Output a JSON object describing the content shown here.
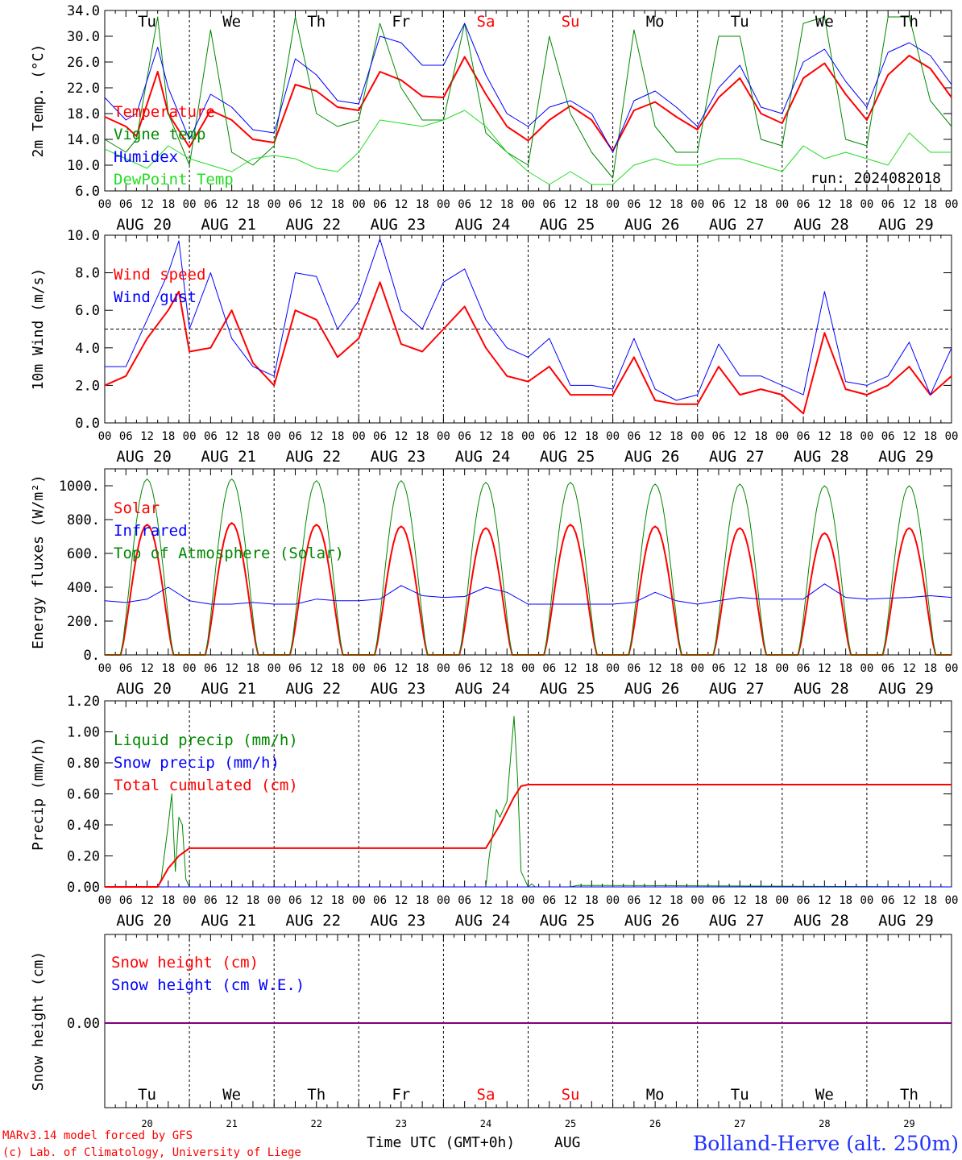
{
  "colors": {
    "red": "#ff0000",
    "green": "#008800",
    "blue": "#0000ff",
    "lightgreen": "#22dd22",
    "purple": "#800080",
    "axis": "#000000",
    "title": "#2233ff"
  },
  "time_axis": {
    "hour_labels": [
      "00",
      "06",
      "12",
      "18"
    ],
    "final_hour_label": "00",
    "date_labels": [
      "AUG 20",
      "AUG 21",
      "AUG 22",
      "AUG 23",
      "AUG 24",
      "AUG 25",
      "AUG 26",
      "AUG 27",
      "AUG 28",
      "AUG 29"
    ],
    "weekday_labels": [
      {
        "text": "Tu",
        "weekend": false
      },
      {
        "text": "We",
        "weekend": false
      },
      {
        "text": "Th",
        "weekend": false
      },
      {
        "text": "Fr",
        "weekend": false
      },
      {
        "text": "Sa",
        "weekend": true
      },
      {
        "text": "Su",
        "weekend": true
      },
      {
        "text": "Mo",
        "weekend": false
      },
      {
        "text": "Tu",
        "weekend": false
      },
      {
        "text": "We",
        "weekend": false
      },
      {
        "text": "Th",
        "weekend": false
      }
    ],
    "day_numbers": [
      "20",
      "21",
      "22",
      "23",
      "24",
      "25",
      "26",
      "27",
      "28",
      "29"
    ],
    "month_label": "AUG",
    "axis_title": "Time UTC (GMT+0h)"
  },
  "footer": {
    "credit_line1": "MARv3.14 model forced by GFS",
    "credit_line2": "(c) Lab. of Climatology, University of Liege",
    "station": "Bolland-Herve (alt. 250m)"
  },
  "chart_data": [
    {
      "type": "line",
      "ylabel": "2m Temp. (°C)",
      "ylim": [
        6,
        34
      ],
      "yticks": [
        6,
        10,
        14,
        18,
        22,
        26,
        30,
        34
      ],
      "ytick_labels": [
        "6.0",
        "10.0",
        "14.0",
        "18.0",
        "22.0",
        "26.0",
        "30.0",
        "34.0"
      ],
      "annotation": "run: 2024082018",
      "x_unit": "hours since 2024-08-20 00 UTC",
      "series": [
        {
          "name": "Temperature",
          "color_key": "red",
          "x": [
            0,
            6,
            9,
            15,
            18,
            24,
            30,
            36,
            42,
            48,
            54,
            60,
            66,
            72,
            78,
            84,
            90,
            96,
            102,
            108,
            114,
            120,
            126,
            132,
            138,
            144,
            150,
            156,
            162,
            168,
            174,
            180,
            186,
            192,
            198,
            204,
            210,
            216,
            222,
            228,
            234,
            240
          ],
          "values": [
            17.5,
            16,
            14.5,
            24.5,
            18,
            12.8,
            18.5,
            17,
            14,
            13.5,
            22.5,
            21.5,
            19,
            18.5,
            24.5,
            23.2,
            20.7,
            20.5,
            26.8,
            21,
            16,
            13.8,
            17,
            19.2,
            17,
            12.2,
            18.5,
            19.8,
            17.5,
            15.5,
            20.5,
            23.5,
            18,
            16.5,
            23.5,
            25.8,
            21,
            17,
            24,
            27,
            25,
            20.5
          ]
        },
        {
          "name": "Vigne temp",
          "color_key": "green",
          "x": [
            0,
            6,
            9,
            15,
            18,
            24,
            30,
            36,
            42,
            48,
            54,
            60,
            66,
            72,
            78,
            84,
            90,
            96,
            102,
            108,
            114,
            120,
            126,
            132,
            138,
            144,
            150,
            156,
            162,
            168,
            174,
            180,
            186,
            192,
            198,
            204,
            210,
            216,
            222,
            228,
            234,
            240
          ],
          "values": [
            14,
            12,
            14,
            33,
            18,
            10,
            31,
            12,
            10,
            13,
            33,
            18,
            16,
            17,
            32,
            22,
            17,
            17,
            32,
            15,
            12,
            10,
            30,
            18,
            12,
            8,
            31,
            16,
            12,
            12,
            30,
            30,
            14,
            13,
            32,
            33,
            14,
            13,
            33,
            33,
            20,
            16
          ]
        },
        {
          "name": "Humidex",
          "color_key": "blue",
          "x": [
            0,
            6,
            9,
            15,
            18,
            24,
            30,
            36,
            42,
            48,
            54,
            60,
            66,
            72,
            78,
            84,
            90,
            96,
            102,
            108,
            114,
            120,
            126,
            132,
            138,
            144,
            150,
            156,
            162,
            168,
            174,
            180,
            186,
            192,
            198,
            204,
            210,
            216,
            222,
            228,
            234,
            240
          ],
          "values": [
            20.5,
            17,
            18,
            28.3,
            22,
            14,
            21,
            19,
            15.5,
            15,
            26.5,
            24,
            20,
            19.5,
            30,
            29,
            25.5,
            25.5,
            32,
            24,
            18,
            16,
            19,
            20,
            18,
            12,
            20,
            21.5,
            19,
            16,
            22,
            25.5,
            19,
            18,
            26,
            28,
            23,
            19,
            27.5,
            29,
            27,
            22.5
          ]
        },
        {
          "name": "DewPoint Temp",
          "color_key": "lightgreen",
          "x": [
            0,
            6,
            12,
            18,
            24,
            30,
            36,
            42,
            48,
            54,
            60,
            66,
            72,
            78,
            84,
            90,
            96,
            102,
            108,
            114,
            120,
            126,
            132,
            138,
            144,
            150,
            156,
            162,
            168,
            174,
            180,
            186,
            192,
            198,
            204,
            210,
            216,
            222,
            228,
            234,
            240
          ],
          "values": [
            12.5,
            11,
            9.5,
            13,
            11,
            10,
            9,
            11,
            11.5,
            11,
            9.5,
            9,
            12,
            17,
            16.5,
            16,
            17,
            18.5,
            16,
            12,
            9,
            7,
            9,
            7,
            7,
            10,
            11,
            10,
            10,
            11,
            11,
            10,
            9,
            13,
            11,
            12,
            11,
            10,
            15,
            12,
            12
          ]
        }
      ]
    },
    {
      "type": "line",
      "ylabel": "10m Wind (m/s)",
      "ylim": [
        0,
        10
      ],
      "yticks": [
        0,
        2,
        4,
        6,
        8,
        10
      ],
      "ytick_labels": [
        "0.0",
        "2.0",
        "4.0",
        "6.0",
        "8.0",
        "10.0"
      ],
      "reference_line": 5,
      "x_unit": "hours since 2024-08-20 00 UTC",
      "series": [
        {
          "name": "Wind speed",
          "color_key": "red",
          "x": [
            0,
            6,
            12,
            18,
            21,
            24,
            30,
            36,
            42,
            48,
            54,
            60,
            66,
            72,
            78,
            84,
            90,
            96,
            102,
            108,
            114,
            120,
            126,
            132,
            138,
            144,
            150,
            156,
            162,
            168,
            174,
            180,
            186,
            192,
            198,
            204,
            210,
            216,
            222,
            228,
            234,
            240
          ],
          "values": [
            2,
            2.5,
            4.5,
            6,
            7,
            3.8,
            4,
            6,
            3.2,
            2,
            6,
            5.5,
            3.5,
            4.5,
            7.5,
            4.2,
            3.8,
            5,
            6.2,
            4,
            2.5,
            2.2,
            3,
            1.5,
            1.5,
            1.5,
            3.5,
            1.2,
            1,
            1,
            3,
            1.5,
            1.8,
            1.5,
            0.5,
            4.8,
            1.8,
            1.5,
            2,
            3,
            1.5,
            2.5
          ]
        },
        {
          "name": "Wind gust",
          "color_key": "blue",
          "x": [
            0,
            6,
            12,
            18,
            21,
            24,
            30,
            36,
            42,
            48,
            54,
            60,
            66,
            72,
            78,
            84,
            90,
            96,
            102,
            108,
            114,
            120,
            126,
            132,
            138,
            144,
            150,
            156,
            162,
            168,
            174,
            180,
            186,
            192,
            198,
            204,
            210,
            216,
            222,
            228,
            234,
            240
          ],
          "values": [
            3,
            3,
            5.5,
            8,
            9.7,
            5,
            8,
            4.5,
            3,
            2.5,
            8,
            7.8,
            5,
            6.5,
            9.8,
            6,
            5,
            7.5,
            8.2,
            5.5,
            4,
            3.5,
            4.5,
            2,
            2,
            1.8,
            4.5,
            1.8,
            1.2,
            1.5,
            4.2,
            2.5,
            2.5,
            2,
            1.5,
            7,
            2.2,
            2,
            2.5,
            4.3,
            1.5,
            4
          ]
        }
      ]
    },
    {
      "type": "line",
      "ylabel": "Energy fluxes (W/m²)",
      "ylim": [
        0,
        1100
      ],
      "yticks": [
        0,
        200,
        400,
        600,
        800,
        1000
      ],
      "ytick_labels": [
        "0.",
        "200.",
        "400.",
        "600.",
        "800.",
        "1000."
      ],
      "x_unit": "hours since 2024-08-20 00 UTC",
      "daily_peak_hour": 12,
      "daily_half_width_hours": 7.5,
      "series": [
        {
          "name": "Solar",
          "color_key": "red",
          "peak_x": [
            12,
            36,
            60,
            84,
            108,
            132,
            156,
            180,
            204,
            228
          ],
          "peak_values": [
            770,
            780,
            770,
            760,
            750,
            770,
            760,
            750,
            720,
            750
          ]
        },
        {
          "name": "Infrared",
          "color_key": "blue",
          "x": [
            0,
            6,
            12,
            18,
            24,
            30,
            36,
            42,
            48,
            54,
            60,
            66,
            72,
            78,
            84,
            90,
            96,
            102,
            108,
            114,
            120,
            126,
            132,
            138,
            144,
            150,
            156,
            162,
            168,
            174,
            180,
            186,
            192,
            198,
            204,
            210,
            216,
            222,
            228,
            234,
            240
          ],
          "values": [
            320,
            310,
            330,
            400,
            320,
            300,
            300,
            310,
            300,
            300,
            330,
            320,
            320,
            330,
            410,
            350,
            340,
            345,
            400,
            370,
            300,
            300,
            300,
            300,
            300,
            310,
            370,
            320,
            300,
            320,
            340,
            330,
            330,
            330,
            420,
            340,
            330,
            335,
            340,
            350,
            340
          ]
        },
        {
          "name": "Top of Atmosphere (Solar)",
          "color_key": "green",
          "peak_x": [
            12,
            36,
            60,
            84,
            108,
            132,
            156,
            180,
            204,
            228
          ],
          "peak_values": [
            1040,
            1040,
            1030,
            1030,
            1020,
            1020,
            1010,
            1010,
            1000,
            1000
          ]
        }
      ]
    },
    {
      "type": "line",
      "ylabel": "Precip (mm/h)",
      "ylim": [
        0,
        1.2
      ],
      "yticks": [
        0,
        0.2,
        0.4,
        0.6,
        0.8,
        1.0,
        1.2
      ],
      "ytick_labels": [
        "0.00",
        "0.20",
        "0.40",
        "0.60",
        "0.80",
        "1.00",
        "1.20"
      ],
      "x_unit": "hours since 2024-08-20 00 UTC",
      "series": [
        {
          "name": "Liquid precip (mm/h)",
          "color_key": "green",
          "x": [
            0,
            15,
            16,
            18,
            19,
            20,
            21,
            22,
            23,
            24,
            25,
            108,
            109,
            111,
            112,
            113,
            114,
            116,
            117,
            118,
            119,
            120,
            121,
            122,
            132,
            134,
            240
          ],
          "values": [
            0,
            0,
            0.05,
            0.4,
            0.6,
            0.1,
            0.45,
            0.4,
            0.05,
            0,
            0,
            0,
            0.2,
            0.5,
            0.45,
            0.5,
            0.55,
            1.1,
            0.7,
            0.1,
            0.05,
            0,
            0.02,
            0,
            0,
            0.01,
            0
          ]
        },
        {
          "name": "Snow precip (mm/h)",
          "color_key": "blue",
          "x": [
            0,
            240
          ],
          "values": [
            0,
            0
          ]
        },
        {
          "name": "Total cumulated (cm)",
          "color_key": "red",
          "x": [
            0,
            15,
            18,
            21,
            24,
            108,
            112,
            116,
            118,
            120,
            240
          ],
          "values": [
            0,
            0,
            0.12,
            0.2,
            0.25,
            0.25,
            0.4,
            0.58,
            0.65,
            0.66,
            0.66
          ]
        }
      ]
    },
    {
      "type": "line",
      "ylabel": "Snow height (cm)",
      "ytick_value": 0,
      "ytick_label": "0.00",
      "x_unit": "hours since 2024-08-20 00 UTC",
      "series": [
        {
          "name": "Snow height (cm)",
          "color_key": "red",
          "x": [
            0,
            240
          ],
          "values": [
            0,
            0
          ]
        },
        {
          "name": "Snow height (cm W.E.)",
          "color_key": "blue",
          "x": [
            0,
            240
          ],
          "values": [
            0,
            0
          ]
        }
      ]
    }
  ]
}
